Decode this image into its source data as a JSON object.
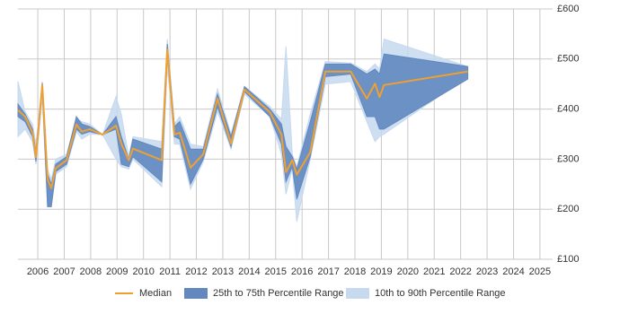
{
  "chart_data": {
    "type": "range-line",
    "x": [
      2005.25,
      2005.52,
      2005.8,
      2005.93,
      2006.17,
      2006.37,
      2006.51,
      2006.68,
      2007.09,
      2007.46,
      2007.67,
      2007.97,
      2008.45,
      2008.96,
      2009.16,
      2009.44,
      2009.6,
      2010.69,
      2010.9,
      2011.17,
      2011.37,
      2011.78,
      2012.26,
      2012.8,
      2013.31,
      2013.82,
      2014.78,
      2015.22,
      2015.39,
      2015.63,
      2015.8,
      2016.31,
      2016.88,
      2017.84,
      2018.45,
      2018.76,
      2018.93,
      2019.1,
      2022.27
    ],
    "series": [
      {
        "name": "Median",
        "color": "#f0a030",
        "values": [
          398,
          385,
          353,
          304,
          448,
          260,
          242,
          282,
          298,
          369,
          355,
          360,
          349,
          367,
          331,
          298,
          321,
          298,
          519,
          349,
          353,
          283,
          310,
          421,
          331,
          439,
          394,
          349,
          274,
          298,
          269,
          314,
          475,
          475,
          421,
          451,
          424,
          448,
          475
        ]
      },
      {
        "name": "25th to 75th Percentile Range",
        "color": "#6288bf",
        "low": [
          385,
          375,
          345,
          295,
          440,
          205,
          205,
          275,
          290,
          360,
          350,
          355,
          349,
          360,
          290,
          285,
          305,
          255,
          510,
          345,
          340,
          250,
          300,
          405,
          325,
          435,
          385,
          330,
          255,
          285,
          220,
          305,
          465,
          470,
          385,
          385,
          360,
          360,
          460
        ],
        "high": [
          410,
          390,
          360,
          315,
          452,
          270,
          250,
          290,
          305,
          385,
          370,
          365,
          349,
          385,
          345,
          300,
          340,
          320,
          530,
          365,
          375,
          320,
          320,
          430,
          345,
          445,
          400,
          370,
          325,
          305,
          280,
          375,
          490,
          490,
          470,
          480,
          470,
          510,
          485
        ]
      },
      {
        "name": "10th to 90th Percentile Range",
        "color": "#c6d9ef",
        "low": [
          345,
          360,
          335,
          290,
          420,
          205,
          205,
          270,
          285,
          355,
          340,
          350,
          349,
          300,
          285,
          280,
          300,
          245,
          485,
          330,
          330,
          240,
          295,
          395,
          320,
          430,
          385,
          310,
          230,
          280,
          175,
          300,
          450,
          455,
          375,
          335,
          345,
          350,
          465
        ],
        "high": [
          455,
          395,
          370,
          330,
          455,
          280,
          260,
          300,
          310,
          380,
          375,
          370,
          349,
          425,
          390,
          305,
          345,
          335,
          540,
          370,
          385,
          330,
          325,
          440,
          350,
          445,
          405,
          380,
          525,
          310,
          285,
          390,
          495,
          492,
          475,
          490,
          480,
          540,
          485
        ]
      }
    ],
    "xlim": [
      2005.25,
      2025.48
    ],
    "xticks": [
      2006,
      2007,
      2008,
      2009,
      2010,
      2011,
      2012,
      2013,
      2014,
      2015,
      2016,
      2017,
      2018,
      2019,
      2020,
      2021,
      2022,
      2023,
      2024,
      2025
    ],
    "ylim": [
      100,
      600
    ],
    "yticks": [
      {
        "value": 100,
        "label": "£100"
      },
      {
        "value": 200,
        "label": "£200"
      },
      {
        "value": 300,
        "label": "£300"
      },
      {
        "value": 400,
        "label": "£400"
      },
      {
        "value": 500,
        "label": "£500"
      },
      {
        "value": 600,
        "label": "£600"
      }
    ],
    "grid": true
  }
}
